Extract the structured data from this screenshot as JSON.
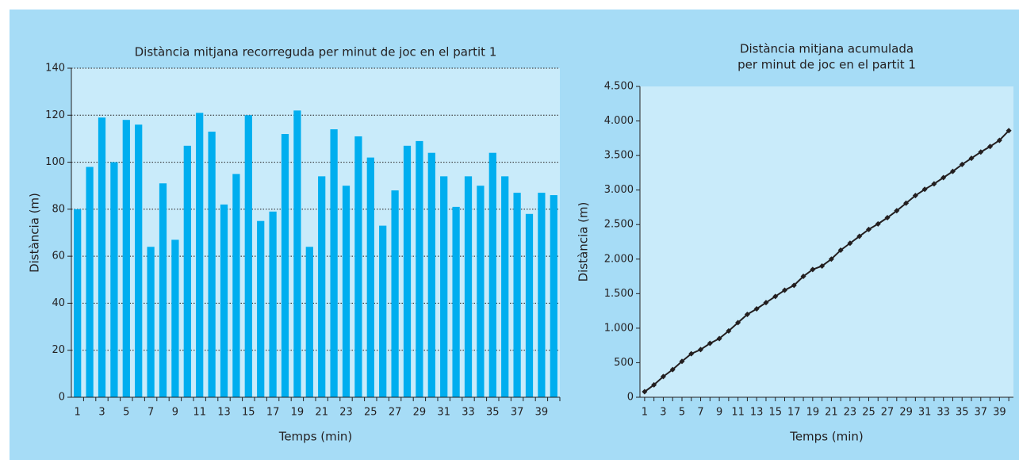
{
  "chart_data": [
    {
      "type": "bar",
      "title": [
        "Distància mitjana recorreguda per minut de joc en el partit 1"
      ],
      "xlabel": "Temps (min)",
      "ylabel": "Distància (m)",
      "categories": [
        1,
        null,
        3,
        null,
        5,
        null,
        7,
        null,
        9,
        null,
        11,
        null,
        13,
        null,
        15,
        null,
        17,
        null,
        19,
        null,
        21,
        null,
        23,
        null,
        25,
        null,
        27,
        null,
        29,
        null,
        31,
        null,
        33,
        null,
        35,
        null,
        37,
        null,
        39,
        null
      ],
      "values": [
        80,
        98,
        119,
        100,
        118,
        116,
        64,
        91,
        67,
        107,
        121,
        113,
        82,
        95,
        120,
        75,
        79,
        112,
        122,
        64,
        94,
        114,
        90,
        111,
        102,
        73,
        88,
        107,
        109,
        104,
        94,
        81,
        94,
        90,
        104,
        94,
        87,
        78,
        87,
        86
      ],
      "color": "#00aeef",
      "ylim": [
        0,
        140
      ],
      "yticks": [
        0,
        20,
        40,
        60,
        80,
        100,
        120,
        140
      ],
      "grid": true
    },
    {
      "type": "line",
      "title": [
        "Distància mitjana acumulada",
        "per minut de joc en el partit 1"
      ],
      "xlabel": "Temps (min)",
      "ylabel": "Distància (m)",
      "categories": [
        1,
        null,
        3,
        null,
        5,
        null,
        7,
        null,
        9,
        null,
        11,
        null,
        13,
        null,
        15,
        null,
        17,
        null,
        19,
        null,
        21,
        null,
        23,
        null,
        25,
        null,
        27,
        null,
        29,
        null,
        31,
        null,
        33,
        null,
        35,
        null,
        37,
        null,
        39,
        null
      ],
      "values": [
        80,
        180,
        300,
        400,
        520,
        630,
        690,
        780,
        850,
        960,
        1080,
        1200,
        1280,
        1370,
        1460,
        1550,
        1620,
        1750,
        1850,
        1900,
        2000,
        2130,
        2230,
        2330,
        2430,
        2510,
        2600,
        2700,
        2810,
        2920,
        3010,
        3090,
        3180,
        3270,
        3370,
        3460,
        3550,
        3630,
        3720,
        3860
      ],
      "color": "#231f20",
      "ylim": [
        0,
        4500
      ],
      "yticks": [
        0,
        500,
        {
          "value": 1000,
          "label": "1.000"
        },
        {
          "value": 1500,
          "label": "1.500"
        },
        {
          "value": 2000,
          "label": "2.000"
        },
        {
          "value": 2500,
          "label": "2.500"
        },
        {
          "value": 3000,
          "label": "3.000"
        },
        {
          "value": 3500,
          "label": "3.500"
        },
        {
          "value": 4000,
          "label": "4.000"
        },
        {
          "value": 4500,
          "label": "4.500"
        }
      ],
      "grid": false
    }
  ]
}
